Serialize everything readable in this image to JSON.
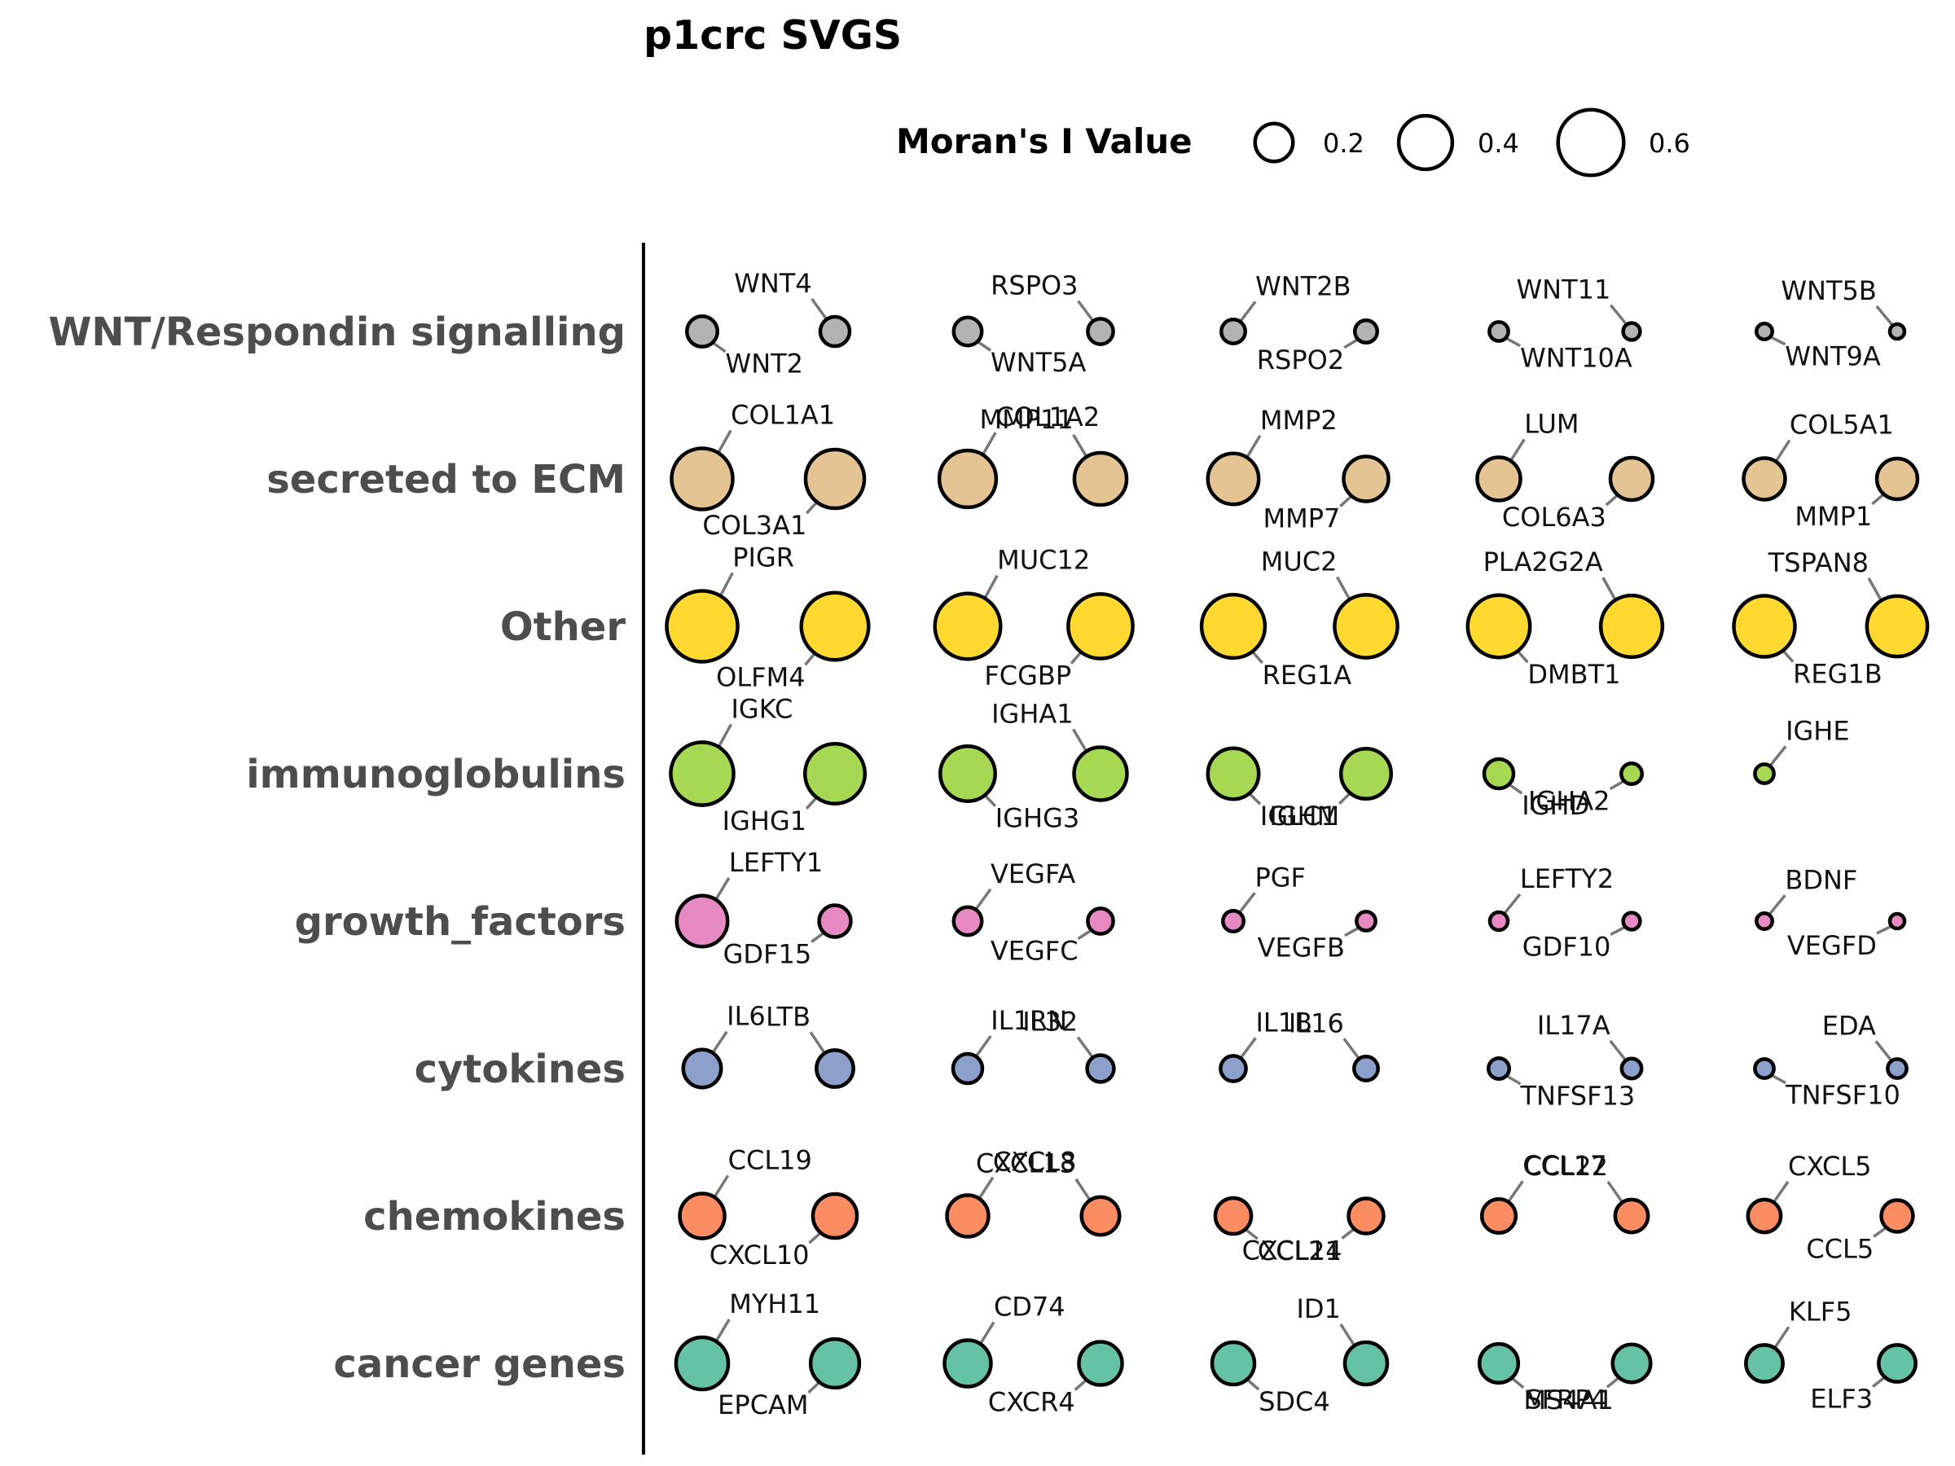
{
  "chart_data": {
    "type": "scatter",
    "title": "p1crc SVGS",
    "legend": {
      "title": "Moran's I Value",
      "placement": "top",
      "items": [
        {
          "label": "0.2",
          "value": 0.2
        },
        {
          "label": "0.4",
          "value": 0.4
        },
        {
          "label": "0.6",
          "value": 0.6
        }
      ]
    },
    "categories": [
      {
        "name": "WNT/Respondin signalling",
        "color": "#b3b3b3",
        "genes": [
          {
            "gene": "WNT2",
            "value": 0.13,
            "label": "below"
          },
          {
            "gene": "WNT4",
            "value": 0.12,
            "label": "above"
          },
          {
            "gene": "WNT5A",
            "value": 0.11,
            "label": "below"
          },
          {
            "gene": "RSPO3",
            "value": 0.09,
            "label": "above"
          },
          {
            "gene": "WNT2B",
            "value": 0.08,
            "label": "above"
          },
          {
            "gene": "RSPO2",
            "value": 0.07,
            "label": "below"
          },
          {
            "gene": "WNT10A",
            "value": 0.05,
            "label": "below"
          },
          {
            "gene": "WNT11",
            "value": 0.04,
            "label": "above"
          },
          {
            "gene": "WNT9A",
            "value": 0.035,
            "label": "below"
          },
          {
            "gene": "WNT5B",
            "value": 0.03,
            "label": "above"
          }
        ]
      },
      {
        "name": "secreted to ECM",
        "color": "#e5c494",
        "genes": [
          {
            "gene": "COL1A1",
            "value": 0.52,
            "label": "above"
          },
          {
            "gene": "COL3A1",
            "value": 0.48,
            "label": "below"
          },
          {
            "gene": "COL1A2",
            "value": 0.45,
            "label": "above"
          },
          {
            "gene": "MMP11",
            "value": 0.38,
            "label": "above"
          },
          {
            "gene": "MMP2",
            "value": 0.36,
            "label": "above"
          },
          {
            "gene": "MMP7",
            "value": 0.28,
            "label": "below"
          },
          {
            "gene": "LUM",
            "value": 0.26,
            "label": "above"
          },
          {
            "gene": "COL6A3",
            "value": 0.25,
            "label": "below"
          },
          {
            "gene": "COL5A1",
            "value": 0.24,
            "label": "above"
          },
          {
            "gene": "MMP1",
            "value": 0.23,
            "label": "below"
          }
        ]
      },
      {
        "name": "Other",
        "color": "#ffd92f",
        "genes": [
          {
            "gene": "PIGR",
            "value": 0.7,
            "label": "above"
          },
          {
            "gene": "OLFM4",
            "value": 0.63,
            "label": "below"
          },
          {
            "gene": "MUC12",
            "value": 0.6,
            "label": "above"
          },
          {
            "gene": "FCGBP",
            "value": 0.58,
            "label": "below"
          },
          {
            "gene": "REG1A",
            "value": 0.56,
            "label": "below"
          },
          {
            "gene": "MUC2",
            "value": 0.55,
            "label": "above"
          },
          {
            "gene": "DMBT1",
            "value": 0.54,
            "label": "below"
          },
          {
            "gene": "PLA2G2A",
            "value": 0.53,
            "label": "above"
          },
          {
            "gene": "REG1B",
            "value": 0.52,
            "label": "below"
          },
          {
            "gene": "TSPAN8",
            "value": 0.51,
            "label": "above"
          }
        ]
      },
      {
        "name": "immunoglobulins",
        "color": "#a6d854",
        "genes": [
          {
            "gene": "IGKC",
            "value": 0.55,
            "label": "above"
          },
          {
            "gene": "IGHG1",
            "value": 0.5,
            "label": "below"
          },
          {
            "gene": "IGHG3",
            "value": 0.42,
            "label": "below"
          },
          {
            "gene": "IGHA1",
            "value": 0.39,
            "label": "above"
          },
          {
            "gene": "IGLC1",
            "value": 0.36,
            "label": "below"
          },
          {
            "gene": "IGHM",
            "value": 0.35,
            "label": "below"
          },
          {
            "gene": "IGHD",
            "value": 0.12,
            "label": "below"
          },
          {
            "gene": "IGHA2",
            "value": 0.06,
            "label": "below"
          },
          {
            "gene": "IGHE",
            "value": 0.05,
            "label": "above"
          }
        ]
      },
      {
        "name": "growth_factors",
        "color": "#e78ac3",
        "genes": [
          {
            "gene": "LEFTY1",
            "value": 0.36,
            "label": "above"
          },
          {
            "gene": "GDF15",
            "value": 0.14,
            "label": "below"
          },
          {
            "gene": "VEGFA",
            "value": 0.11,
            "label": "above"
          },
          {
            "gene": "VEGFC",
            "value": 0.09,
            "label": "below"
          },
          {
            "gene": "PGF",
            "value": 0.06,
            "label": "above"
          },
          {
            "gene": "VEGFB",
            "value": 0.05,
            "label": "below"
          },
          {
            "gene": "LEFTY2",
            "value": 0.045,
            "label": "above"
          },
          {
            "gene": "GDF10",
            "value": 0.04,
            "label": "below"
          },
          {
            "gene": "BDNF",
            "value": 0.035,
            "label": "above"
          },
          {
            "gene": "VEGFD",
            "value": 0.03,
            "label": "below"
          }
        ]
      },
      {
        "name": "cytokines",
        "color": "#8da0cb",
        "genes": [
          {
            "gene": "IL6",
            "value": 0.2,
            "label": "above"
          },
          {
            "gene": "LTB",
            "value": 0.19,
            "label": "above"
          },
          {
            "gene": "IL1RN",
            "value": 0.12,
            "label": "above"
          },
          {
            "gene": "IL32",
            "value": 0.1,
            "label": "above"
          },
          {
            "gene": "IL1B",
            "value": 0.09,
            "label": "above"
          },
          {
            "gene": "IL16",
            "value": 0.08,
            "label": "above"
          },
          {
            "gene": "TNFSF13",
            "value": 0.06,
            "label": "below"
          },
          {
            "gene": "IL17A",
            "value": 0.055,
            "label": "above"
          },
          {
            "gene": "TNFSF10",
            "value": 0.05,
            "label": "below"
          },
          {
            "gene": "EDA",
            "value": 0.05,
            "label": "above"
          }
        ]
      },
      {
        "name": "chemokines",
        "color": "#fc8d62",
        "genes": [
          {
            "gene": "CCL19",
            "value": 0.28,
            "label": "above"
          },
          {
            "gene": "CXCL10",
            "value": 0.27,
            "label": "below"
          },
          {
            "gene": "CXCL8",
            "value": 0.24,
            "label": "above"
          },
          {
            "gene": "CXCL13",
            "value": 0.2,
            "label": "above"
          },
          {
            "gene": "CCL21",
            "value": 0.18,
            "label": "below"
          },
          {
            "gene": "CXCL14",
            "value": 0.17,
            "label": "below"
          },
          {
            "gene": "CCL17",
            "value": 0.16,
            "label": "above"
          },
          {
            "gene": "CCL22",
            "value": 0.15,
            "label": "above"
          },
          {
            "gene": "CXCL5",
            "value": 0.15,
            "label": "above"
          },
          {
            "gene": "CCL5",
            "value": 0.14,
            "label": "below"
          }
        ]
      },
      {
        "name": "cancer genes",
        "color": "#66c2a5",
        "genes": [
          {
            "gene": "MYH11",
            "value": 0.38,
            "label": "above"
          },
          {
            "gene": "EPCAM",
            "value": 0.33,
            "label": "below"
          },
          {
            "gene": "CD74",
            "value": 0.3,
            "label": "above"
          },
          {
            "gene": "CXCR4",
            "value": 0.26,
            "label": "below"
          },
          {
            "gene": "SDC4",
            "value": 0.25,
            "label": "below"
          },
          {
            "gene": "ID1",
            "value": 0.25,
            "label": "above"
          },
          {
            "gene": "MS4A1",
            "value": 0.21,
            "label": "below"
          },
          {
            "gene": "SFRP4",
            "value": 0.2,
            "label": "below"
          },
          {
            "gene": "KLF5",
            "value": 0.19,
            "label": "above"
          },
          {
            "gene": "ELF3",
            "value": 0.19,
            "label": "below"
          }
        ]
      }
    ]
  }
}
